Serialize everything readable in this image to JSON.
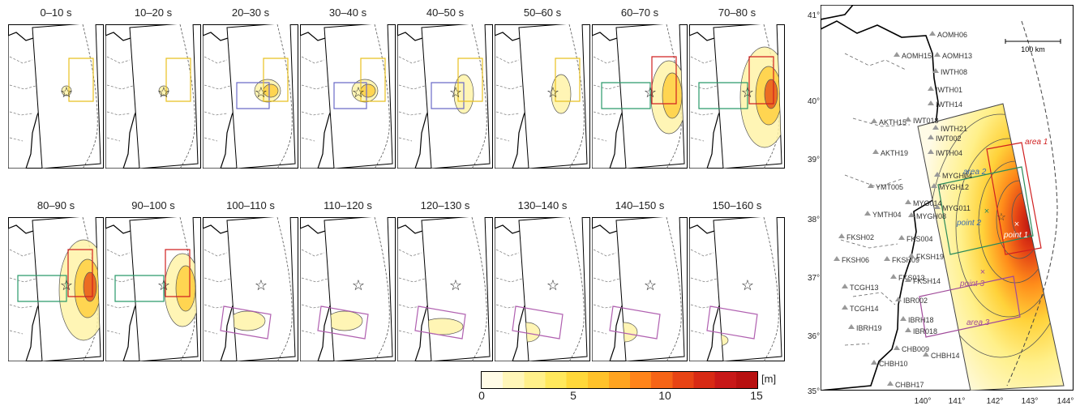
{
  "snapshots": [
    {
      "label": "0–10 s",
      "source": "point",
      "box": "area1"
    },
    {
      "label": "10–20 s",
      "source": "point",
      "box": "area1"
    },
    {
      "label": "20–30 s",
      "source": "lobe",
      "box": "area1b"
    },
    {
      "label": "30–40 s",
      "source": "lobe",
      "box": "area1b"
    },
    {
      "label": "40–50 s",
      "source": "weak",
      "box": "area1b"
    },
    {
      "label": "50–60 s",
      "source": "weak",
      "box": "area1"
    },
    {
      "label": "60–70 s",
      "source": "trench",
      "box": "area12"
    },
    {
      "label": "70–80 s",
      "source": "trenchBig",
      "box": "area12"
    },
    {
      "label": "80–90 s",
      "source": "trenchBig",
      "box": "area12"
    },
    {
      "label": "90–100 s",
      "source": "trench",
      "box": "area12"
    },
    {
      "label": "100–110 s",
      "source": "south",
      "box": "area3"
    },
    {
      "label": "110–120 s",
      "source": "south",
      "box": "area3"
    },
    {
      "label": "120–130 s",
      "source": "south2",
      "box": "area3"
    },
    {
      "label": "130–140 s",
      "source": "south3",
      "box": "area3"
    },
    {
      "label": "140–150 s",
      "source": "south3",
      "box": "area3"
    },
    {
      "label": "150–160 s",
      "source": "south4",
      "box": "area3"
    }
  ],
  "colorbar": {
    "ticks": [
      "0",
      "5",
      "10",
      "15"
    ],
    "unit": "[m]",
    "colors": [
      "#fffbe6",
      "#fff6b8",
      "#fff08a",
      "#ffe85c",
      "#ffd83a",
      "#ffc22a",
      "#ffa420",
      "#ff841a",
      "#f66416",
      "#e84414",
      "#d82a14",
      "#c81818",
      "#b81010"
    ]
  },
  "map": {
    "lat_labels": [
      "41°",
      "40°",
      "39°",
      "38°",
      "37°",
      "36°",
      "35°"
    ],
    "lon_labels": [
      "140°",
      "141°",
      "142°",
      "143°",
      "144°"
    ],
    "scale": "100 km",
    "stations": [
      {
        "name": "AOMH06"
      },
      {
        "name": "AOMH15"
      },
      {
        "name": "AOMH13"
      },
      {
        "name": "IWTH08"
      },
      {
        "name": "IWTH01"
      },
      {
        "name": "IWTH14"
      },
      {
        "name": "AKTH15"
      },
      {
        "name": "IWT018"
      },
      {
        "name": "IWTH21"
      },
      {
        "name": "IWT002"
      },
      {
        "name": "AKTH19"
      },
      {
        "name": "IWTH04"
      },
      {
        "name": "MYGH04"
      },
      {
        "name": "YMT005"
      },
      {
        "name": "MYGH12"
      },
      {
        "name": "MYG014"
      },
      {
        "name": "MYG011"
      },
      {
        "name": "YMTH04"
      },
      {
        "name": "MYGH08"
      },
      {
        "name": "FKS004"
      },
      {
        "name": "FKSH02"
      },
      {
        "name": "FKSH06"
      },
      {
        "name": "FKSH09"
      },
      {
        "name": "FKSH19"
      },
      {
        "name": "FKS013"
      },
      {
        "name": "FKSH14"
      },
      {
        "name": "TCGH13"
      },
      {
        "name": "IBR002"
      },
      {
        "name": "TCGH14"
      },
      {
        "name": "IBRH18"
      },
      {
        "name": "IBRH19"
      },
      {
        "name": "IBR018"
      },
      {
        "name": "CHB009"
      },
      {
        "name": "CHBH14"
      },
      {
        "name": "CHBH10"
      },
      {
        "name": "CHBH17"
      }
    ],
    "areas": [
      "area 1",
      "area 2",
      "area 3"
    ],
    "points": [
      "point 1",
      "point 2",
      "point 3"
    ]
  }
}
